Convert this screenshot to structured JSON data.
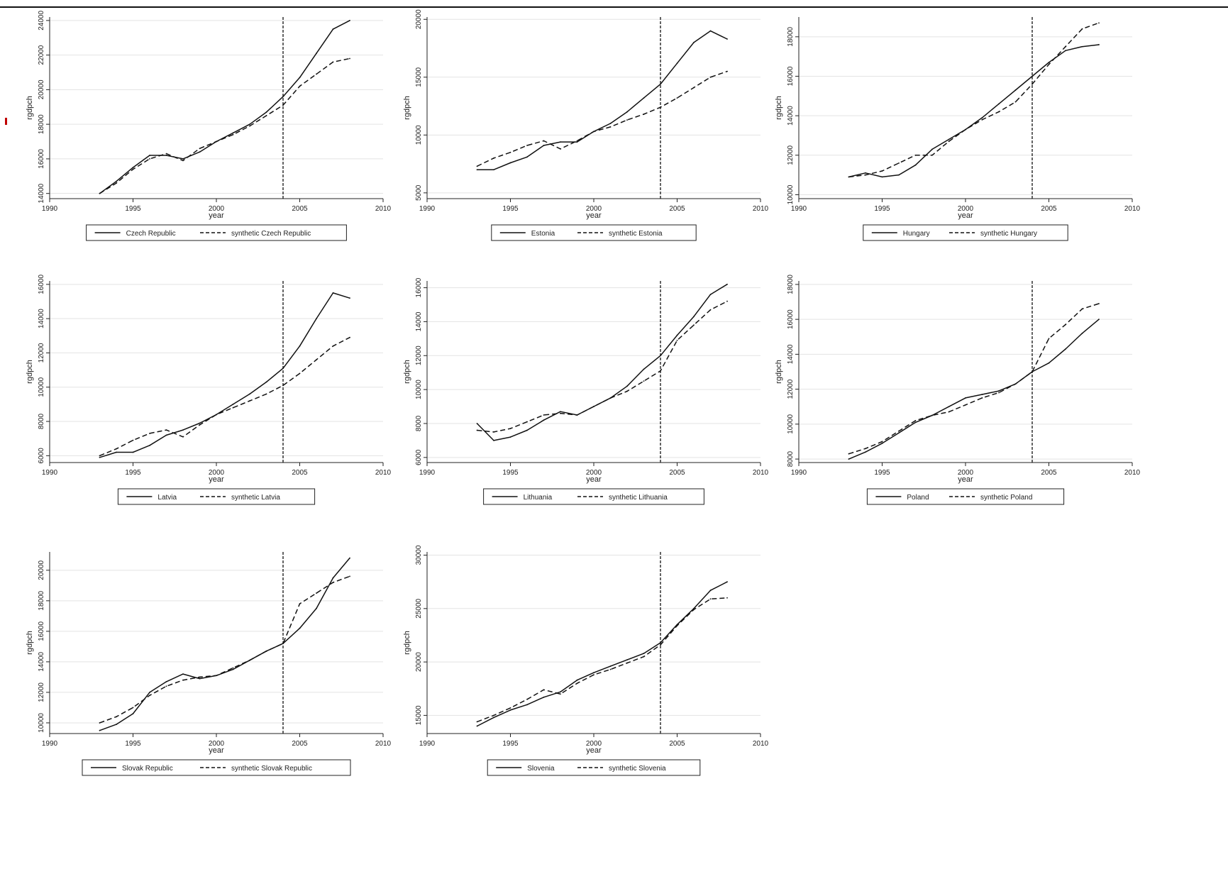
{
  "chart_data": [
    {
      "type": "line",
      "xlabel": "year",
      "ylabel": "rgdpch",
      "xlim": [
        1990,
        2010
      ],
      "xticks": [
        1990,
        1995,
        2000,
        2005,
        2010
      ],
      "ylim": [
        13700,
        24200
      ],
      "yticks": [
        14000,
        16000,
        18000,
        20000,
        22000,
        24000
      ],
      "vline_x": 2004,
      "grid": true,
      "legend_position": "bottom",
      "series": [
        {
          "name": "Czech Republic",
          "style": "solid",
          "x": [
            1993,
            1994,
            1995,
            1996,
            1997,
            1998,
            1999,
            2000,
            2001,
            2002,
            2003,
            2004,
            2005,
            2006,
            2007,
            2008
          ],
          "y": [
            14000,
            14700,
            15500,
            16200,
            16200,
            16000,
            16400,
            17000,
            17500,
            18000,
            18700,
            19600,
            20700,
            22100,
            23500,
            24000
          ]
        },
        {
          "name": "synthetic Czech Republic",
          "style": "dashed",
          "x": [
            1993,
            1994,
            1995,
            1996,
            1997,
            1998,
            1999,
            2000,
            2001,
            2002,
            2003,
            2004,
            2005,
            2006,
            2007,
            2008
          ],
          "y": [
            14000,
            14600,
            15400,
            16000,
            16300,
            15900,
            16600,
            17000,
            17400,
            17900,
            18500,
            19100,
            20200,
            20900,
            21600,
            21800
          ]
        }
      ]
    },
    {
      "type": "line",
      "xlabel": "year",
      "ylabel": "rgdpch",
      "xlim": [
        1990,
        2010
      ],
      "xticks": [
        1990,
        1995,
        2000,
        2005,
        2010
      ],
      "ylim": [
        4500,
        20200
      ],
      "yticks": [
        5000,
        10000,
        15000,
        20000
      ],
      "vline_x": 2004,
      "grid": true,
      "legend_position": "bottom",
      "series": [
        {
          "name": "Estonia",
          "style": "solid",
          "x": [
            1993,
            1994,
            1995,
            1996,
            1997,
            1998,
            1999,
            2000,
            2001,
            2002,
            2003,
            2004,
            2005,
            2006,
            2007,
            2008
          ],
          "y": [
            7000,
            7000,
            7600,
            8100,
            9100,
            9400,
            9400,
            10300,
            11000,
            12000,
            13200,
            14400,
            16200,
            18000,
            19000,
            18300
          ]
        },
        {
          "name": "synthetic Estonia",
          "style": "dashed",
          "x": [
            1993,
            1994,
            1995,
            1996,
            1997,
            1998,
            1999,
            2000,
            2001,
            2002,
            2003,
            2004,
            2005,
            2006,
            2007,
            2008
          ],
          "y": [
            7300,
            8000,
            8500,
            9100,
            9500,
            8800,
            9500,
            10300,
            10700,
            11300,
            11800,
            12400,
            13200,
            14100,
            15000,
            15500
          ]
        }
      ]
    },
    {
      "type": "line",
      "xlabel": "year",
      "ylabel": "rgdpch",
      "xlim": [
        1990,
        2010
      ],
      "xticks": [
        1990,
        1995,
        2000,
        2005,
        2010
      ],
      "ylim": [
        9800,
        19000
      ],
      "yticks": [
        10000,
        12000,
        14000,
        16000,
        18000
      ],
      "vline_x": 2004,
      "grid": true,
      "legend_position": "bottom",
      "series": [
        {
          "name": "Hungary",
          "style": "solid",
          "x": [
            1993,
            1994,
            1995,
            1996,
            1997,
            1998,
            1999,
            2000,
            2001,
            2002,
            2003,
            2004,
            2005,
            2006,
            2007,
            2008
          ],
          "y": [
            10900,
            11100,
            10900,
            11000,
            11500,
            12300,
            12800,
            13300,
            13900,
            14600,
            15300,
            16000,
            16700,
            17300,
            17500,
            17600
          ]
        },
        {
          "name": "synthetic Hungary",
          "style": "dashed",
          "x": [
            1993,
            1994,
            1995,
            1996,
            1997,
            1998,
            1999,
            2000,
            2001,
            2002,
            2003,
            2004,
            2005,
            2006,
            2007,
            2008
          ],
          "y": [
            10900,
            11000,
            11200,
            11600,
            12000,
            12000,
            12700,
            13300,
            13800,
            14200,
            14700,
            15600,
            16600,
            17500,
            18400,
            18700
          ]
        }
      ]
    },
    {
      "type": "line",
      "xlabel": "year",
      "ylabel": "rgdpch",
      "xlim": [
        1990,
        2010
      ],
      "xticks": [
        1990,
        1995,
        2000,
        2005,
        2010
      ],
      "ylim": [
        5600,
        16200
      ],
      "yticks": [
        6000,
        8000,
        10000,
        12000,
        14000,
        16000
      ],
      "vline_x": 2004,
      "grid": true,
      "legend_position": "bottom",
      "series": [
        {
          "name": "Latvia",
          "style": "solid",
          "x": [
            1993,
            1994,
            1995,
            1996,
            1997,
            1998,
            1999,
            2000,
            2001,
            2002,
            2003,
            2004,
            2005,
            2006,
            2007,
            2008
          ],
          "y": [
            5900,
            6200,
            6200,
            6600,
            7200,
            7500,
            7900,
            8400,
            9000,
            9600,
            10300,
            11100,
            12400,
            14000,
            15500,
            15200
          ]
        },
        {
          "name": "synthetic Latvia",
          "style": "dashed",
          "x": [
            1993,
            1994,
            1995,
            1996,
            1997,
            1998,
            1999,
            2000,
            2001,
            2002,
            2003,
            2004,
            2005,
            2006,
            2007,
            2008
          ],
          "y": [
            6000,
            6400,
            6900,
            7300,
            7500,
            7100,
            7800,
            8400,
            8800,
            9200,
            9600,
            10100,
            10800,
            11600,
            12400,
            12900
          ]
        }
      ]
    },
    {
      "type": "line",
      "xlabel": "year",
      "ylabel": "rgdpch",
      "xlim": [
        1990,
        2010
      ],
      "xticks": [
        1990,
        1995,
        2000,
        2005,
        2010
      ],
      "ylim": [
        5700,
        16400
      ],
      "yticks": [
        6000,
        8000,
        10000,
        12000,
        14000,
        16000
      ],
      "vline_x": 2004,
      "grid": true,
      "legend_position": "bottom",
      "series": [
        {
          "name": "Lithuania",
          "style": "solid",
          "x": [
            1993,
            1994,
            1995,
            1996,
            1997,
            1998,
            1999,
            2000,
            2001,
            2002,
            2003,
            2004,
            2005,
            2006,
            2007,
            2008
          ],
          "y": [
            8000,
            7000,
            7200,
            7600,
            8200,
            8700,
            8500,
            9000,
            9500,
            10200,
            11200,
            12000,
            13200,
            14300,
            15600,
            16200
          ]
        },
        {
          "name": "synthetic Lithuania",
          "style": "dashed",
          "x": [
            1993,
            1994,
            1995,
            1996,
            1997,
            1998,
            1999,
            2000,
            2001,
            2002,
            2003,
            2004,
            2005,
            2006,
            2007,
            2008
          ],
          "y": [
            7600,
            7500,
            7700,
            8100,
            8500,
            8600,
            8500,
            9000,
            9500,
            9900,
            10500,
            11100,
            12900,
            13800,
            14700,
            15200
          ]
        }
      ]
    },
    {
      "type": "line",
      "xlabel": "year",
      "ylabel": "rgdpch",
      "xlim": [
        1990,
        2010
      ],
      "xticks": [
        1990,
        1995,
        2000,
        2005,
        2010
      ],
      "ylim": [
        7800,
        18200
      ],
      "yticks": [
        8000,
        10000,
        12000,
        14000,
        16000,
        18000
      ],
      "vline_x": 2004,
      "grid": true,
      "legend_position": "bottom",
      "series": [
        {
          "name": "Poland",
          "style": "solid",
          "x": [
            1993,
            1994,
            1995,
            1996,
            1997,
            1998,
            1999,
            2000,
            2001,
            2002,
            2003,
            2004,
            2005,
            2006,
            2007,
            2008
          ],
          "y": [
            8000,
            8400,
            8900,
            9500,
            10100,
            10500,
            11000,
            11500,
            11700,
            11900,
            12300,
            13000,
            13500,
            14300,
            15200,
            16000
          ]
        },
        {
          "name": "synthetic Poland",
          "style": "dashed",
          "x": [
            1993,
            1994,
            1995,
            1996,
            1997,
            1998,
            1999,
            2000,
            2001,
            2002,
            2003,
            2004,
            2005,
            2006,
            2007,
            2008
          ],
          "y": [
            8300,
            8600,
            9000,
            9600,
            10200,
            10500,
            10700,
            11100,
            11500,
            11800,
            12300,
            13000,
            14900,
            15700,
            16600,
            16900
          ]
        }
      ]
    },
    {
      "type": "line",
      "xlabel": "year",
      "ylabel": "rgdpch",
      "xlim": [
        1990,
        2010
      ],
      "xticks": [
        1990,
        1995,
        2000,
        2005,
        2010
      ],
      "ylim": [
        9300,
        21200
      ],
      "yticks": [
        10000,
        12000,
        14000,
        16000,
        18000,
        20000
      ],
      "vline_x": 2004,
      "grid": true,
      "legend_position": "bottom",
      "series": [
        {
          "name": "Slovak Republic",
          "style": "solid",
          "x": [
            1993,
            1994,
            1995,
            1996,
            1997,
            1998,
            1999,
            2000,
            2001,
            2002,
            2003,
            2004,
            2005,
            2006,
            2007,
            2008
          ],
          "y": [
            9500,
            9900,
            10600,
            12000,
            12700,
            13200,
            12900,
            13100,
            13500,
            14100,
            14700,
            15200,
            16200,
            17500,
            19500,
            20800
          ]
        },
        {
          "name": "synthetic Slovak Republic",
          "style": "dashed",
          "x": [
            1993,
            1994,
            1995,
            1996,
            1997,
            1998,
            1999,
            2000,
            2001,
            2002,
            2003,
            2004,
            2005,
            2006,
            2007,
            2008
          ],
          "y": [
            10000,
            10400,
            11000,
            11800,
            12400,
            12800,
            13000,
            13100,
            13600,
            14100,
            14700,
            15200,
            17800,
            18500,
            19200,
            19600
          ]
        }
      ]
    },
    {
      "type": "line",
      "xlabel": "year",
      "ylabel": "rgdpch",
      "xlim": [
        1990,
        2010
      ],
      "xticks": [
        1990,
        1995,
        2000,
        2005,
        2010
      ],
      "ylim": [
        13300,
        30300
      ],
      "yticks": [
        15000,
        20000,
        25000,
        30000
      ],
      "vline_x": 2004,
      "grid": true,
      "legend_position": "bottom",
      "series": [
        {
          "name": "Slovenia",
          "style": "solid",
          "x": [
            1993,
            1994,
            1995,
            1996,
            1997,
            1998,
            1999,
            2000,
            2001,
            2002,
            2003,
            2004,
            2005,
            2006,
            2007,
            2008
          ],
          "y": [
            14000,
            14800,
            15500,
            16000,
            16700,
            17200,
            18300,
            19000,
            19600,
            20200,
            20800,
            21800,
            23500,
            25000,
            26700,
            27500
          ]
        },
        {
          "name": "synthetic Slovenia",
          "style": "dashed",
          "x": [
            1993,
            1994,
            1995,
            1996,
            1997,
            1998,
            1999,
            2000,
            2001,
            2002,
            2003,
            2004,
            2005,
            2006,
            2007,
            2008
          ],
          "y": [
            14400,
            15000,
            15700,
            16500,
            17400,
            17000,
            18000,
            18800,
            19300,
            19900,
            20500,
            21600,
            23400,
            24900,
            25900,
            26000
          ]
        }
      ]
    }
  ]
}
